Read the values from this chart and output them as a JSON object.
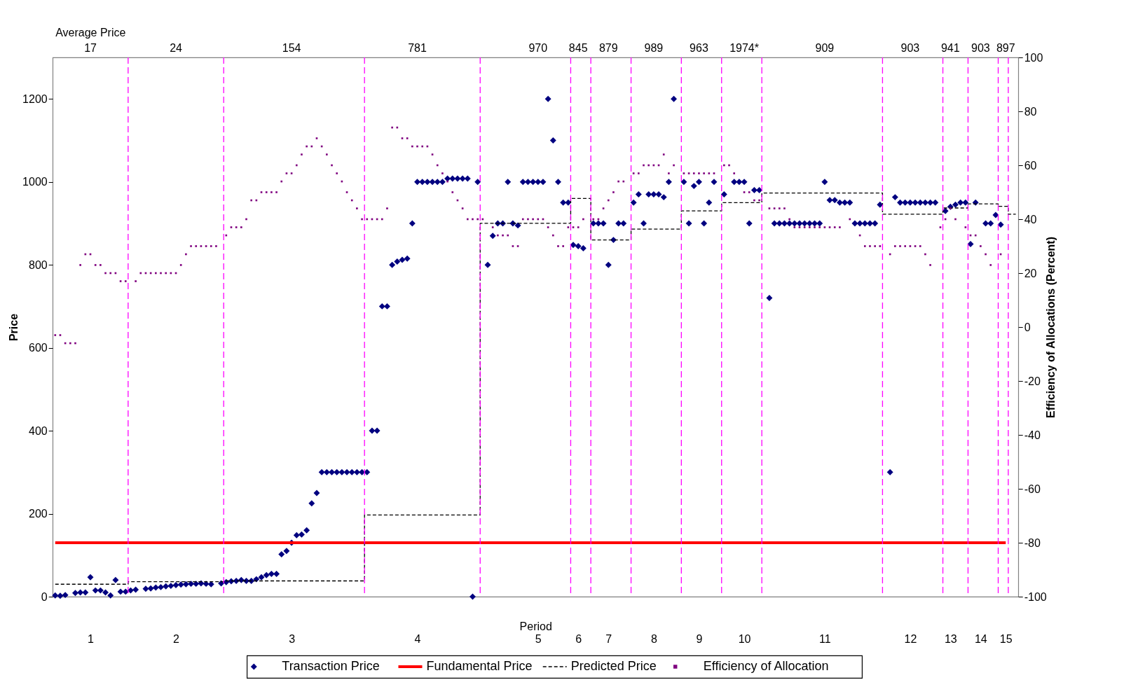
{
  "chart_data": {
    "type": "scatter",
    "xlabel": "Period",
    "ylabel": "Price",
    "y2label": "Efficiency of Allocations (Percent)",
    "categories": [
      null,
      null,
      null,
      null,
      null,
      null,
      null,
      "1",
      null,
      null,
      null,
      null,
      null,
      null,
      null,
      null,
      null,
      null,
      null,
      null,
      null,
      null,
      null,
      null,
      "2",
      null,
      null,
      null,
      null,
      null,
      null,
      null,
      null,
      null,
      null,
      null,
      null,
      null,
      null,
      null,
      null,
      null,
      null,
      null,
      null,
      null,
      null,
      "3",
      null,
      null,
      null,
      null,
      null,
      null,
      null,
      null,
      null,
      null,
      null,
      null,
      null,
      null,
      null,
      null,
      null,
      null,
      null,
      null,
      null,
      null,
      null,
      null,
      "4",
      null,
      null,
      null,
      null,
      null,
      null,
      null,
      null,
      null,
      null,
      null,
      null,
      null,
      null,
      null,
      null,
      null,
      null,
      null,
      null,
      null,
      null,
      null,
      "5",
      null,
      null,
      null,
      null,
      null,
      null,
      null,
      "6",
      null,
      null,
      null,
      null,
      null,
      "7",
      null,
      null,
      null,
      null,
      null,
      null,
      null,
      null,
      "8",
      null,
      null,
      null,
      null,
      null,
      null,
      null,
      null,
      "9",
      null,
      null,
      null,
      null,
      null,
      null,
      null,
      null,
      "10",
      null,
      null,
      null,
      null,
      null,
      null,
      null,
      null,
      null,
      null,
      null,
      null,
      null,
      null,
      null,
      "11",
      null,
      null,
      null,
      null,
      null,
      null,
      null,
      null,
      null,
      null,
      null,
      null,
      null,
      null,
      null,
      null,
      "12",
      null,
      null,
      null,
      null,
      null,
      null,
      null,
      "13",
      null,
      null,
      null,
      null,
      null,
      "14",
      null,
      null,
      null,
      null,
      "15",
      null,
      null
    ],
    "annotations": [
      "Average Price",
      "17",
      "24",
      "154",
      "781",
      "970",
      "845",
      "879",
      "989",
      "963",
      "1974*",
      "909",
      "903",
      "941",
      "903",
      "897"
    ],
    "ylim": [
      0,
      1300
    ],
    "yticks": [
      0,
      200,
      400,
      600,
      800,
      1000,
      1200
    ],
    "y2lim": [
      -100,
      100
    ],
    "y2ticks": [
      -100,
      -80,
      -60,
      -40,
      -20,
      0,
      20,
      40,
      60,
      80,
      100
    ],
    "grid": false,
    "legend": "bottom",
    "series": [
      {
        "name": "Transaction Price",
        "marker": "diamond",
        "color": "#000080",
        "values": [
          3,
          2,
          4,
          null,
          9,
          10,
          10,
          47,
          15,
          15,
          10,
          3,
          40,
          12,
          12,
          15,
          17,
          null,
          19,
          20,
          22,
          23,
          25,
          26,
          28,
          29,
          30,
          31,
          31,
          32,
          31,
          30,
          null,
          32,
          35,
          37,
          38,
          40,
          38,
          38,
          42,
          47,
          52,
          55,
          55,
          102,
          110,
          130,
          148,
          150,
          160,
          225,
          250,
          300,
          300,
          300,
          300,
          300,
          300,
          300,
          300,
          300,
          300,
          400,
          400,
          700,
          700,
          800,
          808,
          812,
          815,
          900,
          1000,
          1000,
          1000,
          1000,
          1000,
          1000,
          1008,
          1008,
          1008,
          1008,
          1008,
          0,
          1000,
          null,
          800,
          870,
          900,
          900,
          1000,
          900,
          895,
          1000,
          1000,
          1000,
          1000,
          1000,
          1200,
          1100,
          1000,
          950,
          950,
          848,
          845,
          840,
          null,
          900,
          900,
          900,
          800,
          860,
          900,
          900,
          null,
          950,
          970,
          900,
          970,
          970,
          970,
          963,
          1000,
          1200,
          null,
          1000,
          900,
          990,
          1000,
          900,
          950,
          1000,
          null,
          970,
          null,
          1000,
          1000,
          1000,
          900,
          980,
          980,
          null,
          720,
          900,
          900,
          900,
          900,
          900,
          900,
          900,
          900,
          900,
          900,
          1000,
          956,
          956,
          950,
          950,
          950,
          900,
          900,
          900,
          900,
          900,
          945,
          null,
          300,
          963,
          950,
          950,
          950,
          950,
          950,
          950,
          950,
          950,
          null,
          930,
          940,
          945,
          950,
          950,
          850,
          950,
          null,
          900,
          900,
          920,
          897,
          null,
          null,
          null
        ]
      },
      {
        "name": "Fundamental Price",
        "type": "line",
        "line_style": "solid",
        "color": "#ff0000",
        "values": [
          130,
          130,
          130,
          130,
          130,
          130,
          130,
          130,
          130,
          130,
          130,
          130,
          130,
          130,
          130,
          130,
          130,
          130,
          130,
          130,
          130,
          130,
          130,
          130,
          130,
          130,
          130,
          130,
          130,
          130,
          130,
          130,
          130,
          130,
          130,
          130,
          130,
          130,
          130,
          130,
          130,
          130,
          130,
          130,
          130,
          130,
          130,
          130,
          130,
          130,
          130,
          130,
          130,
          130,
          130,
          130,
          130,
          130,
          130,
          130,
          130,
          130,
          130,
          130,
          130,
          130,
          130,
          130,
          130,
          130,
          130,
          130,
          130,
          130,
          130,
          130,
          130,
          130,
          130,
          130,
          130,
          130,
          130,
          130,
          130,
          130,
          130,
          130,
          130,
          130,
          130,
          130,
          130,
          130,
          130,
          130,
          130,
          130,
          130,
          130,
          130,
          130,
          130,
          130,
          130,
          130,
          130,
          130,
          130,
          130,
          130,
          130,
          130,
          130,
          130,
          130,
          130,
          130,
          130,
          130,
          130,
          130,
          130,
          130,
          130,
          130,
          130,
          130,
          130,
          130,
          130,
          130,
          130,
          130,
          130,
          130,
          130,
          130,
          130,
          130,
          130,
          130,
          130,
          130,
          130,
          130,
          130,
          130,
          130,
          130,
          130,
          130,
          130,
          130,
          130,
          130,
          130,
          130,
          130,
          130,
          130,
          130,
          130,
          130,
          130,
          130,
          130,
          130,
          130,
          130,
          130,
          130,
          130,
          130,
          130,
          130,
          130,
          130,
          130,
          130,
          130,
          130,
          130,
          130,
          130,
          130,
          130,
          130,
          130,
          130,
          null,
          null
        ]
      },
      {
        "name": "Predicted Price",
        "type": "step",
        "line_style": "dashed",
        "color": "#000000",
        "values": [
          30,
          30,
          30,
          30,
          30,
          30,
          30,
          30,
          30,
          30,
          30,
          30,
          30,
          30,
          30,
          36,
          36,
          36,
          36,
          36,
          36,
          36,
          36,
          36,
          36,
          36,
          36,
          36,
          36,
          36,
          36,
          36,
          36,
          36,
          38,
          38,
          38,
          38,
          38,
          38,
          38,
          38,
          38,
          38,
          38,
          38,
          38,
          38,
          38,
          38,
          38,
          38,
          38,
          38,
          38,
          38,
          38,
          38,
          38,
          38,
          38,
          38,
          197,
          197,
          197,
          197,
          197,
          197,
          197,
          197,
          197,
          197,
          197,
          197,
          197,
          197,
          197,
          197,
          197,
          197,
          197,
          197,
          197,
          197,
          197,
          900,
          900,
          900,
          900,
          900,
          900,
          900,
          900,
          900,
          900,
          900,
          900,
          900,
          900,
          900,
          900,
          900,
          900,
          960,
          960,
          960,
          960,
          860,
          860,
          860,
          860,
          860,
          860,
          860,
          860,
          886,
          886,
          886,
          886,
          886,
          886,
          886,
          886,
          886,
          886,
          930,
          930,
          930,
          930,
          930,
          930,
          930,
          930,
          950,
          950,
          950,
          950,
          950,
          950,
          950,
          950,
          973,
          973,
          973,
          973,
          973,
          973,
          973,
          973,
          973,
          973,
          973,
          973,
          973,
          973,
          973,
          973,
          973,
          973,
          973,
          973,
          973,
          973,
          973,
          973,
          922,
          922,
          922,
          922,
          922,
          922,
          922,
          922,
          922,
          922,
          922,
          922,
          937,
          937,
          937,
          937,
          937,
          947,
          947,
          947,
          947,
          947,
          947,
          941,
          941,
          922,
          922
        ]
      },
      {
        "name": "Efficiency of Allocation",
        "marker": "square",
        "color": "#7f007f",
        "axis": "y2",
        "values": [
          -3,
          -3,
          -6,
          -6,
          -6,
          23,
          27,
          27,
          23,
          23,
          20,
          20,
          20,
          17,
          17,
          null,
          17,
          20,
          20,
          20,
          20,
          20,
          20,
          20,
          20,
          23,
          27,
          30,
          30,
          30,
          30,
          30,
          30,
          null,
          34,
          37,
          37,
          37,
          40,
          47,
          47,
          50,
          50,
          50,
          50,
          54,
          57,
          57,
          60,
          64,
          67,
          67,
          70,
          67,
          64,
          60,
          57,
          54,
          50,
          47,
          44,
          40,
          40,
          40,
          40,
          40,
          44,
          74,
          74,
          70,
          70,
          67,
          67,
          67,
          67,
          64,
          60,
          57,
          54,
          50,
          47,
          44,
          40,
          40,
          40,
          40,
          null,
          37,
          34,
          34,
          34,
          30,
          30,
          40,
          40,
          40,
          40,
          40,
          37,
          34,
          30,
          30,
          37,
          37,
          37,
          40,
          null,
          40,
          40,
          44,
          47,
          50,
          54,
          54,
          null,
          57,
          57,
          60,
          60,
          60,
          60,
          64,
          57,
          60,
          null,
          57,
          57,
          57,
          57,
          57,
          57,
          57,
          null,
          60,
          60,
          57,
          null,
          50,
          50,
          47,
          47,
          null,
          44,
          44,
          44,
          44,
          40,
          37,
          37,
          37,
          37,
          37,
          37,
          37,
          37,
          37,
          37,
          null,
          40,
          null,
          34,
          30,
          30,
          30,
          30,
          null,
          27,
          30,
          30,
          30,
          30,
          30,
          30,
          27,
          23,
          null,
          37,
          40,
          44,
          40,
          null,
          37,
          34,
          34,
          30,
          27,
          23,
          null,
          27,
          null,
          null,
          null
        ]
      }
    ]
  }
}
